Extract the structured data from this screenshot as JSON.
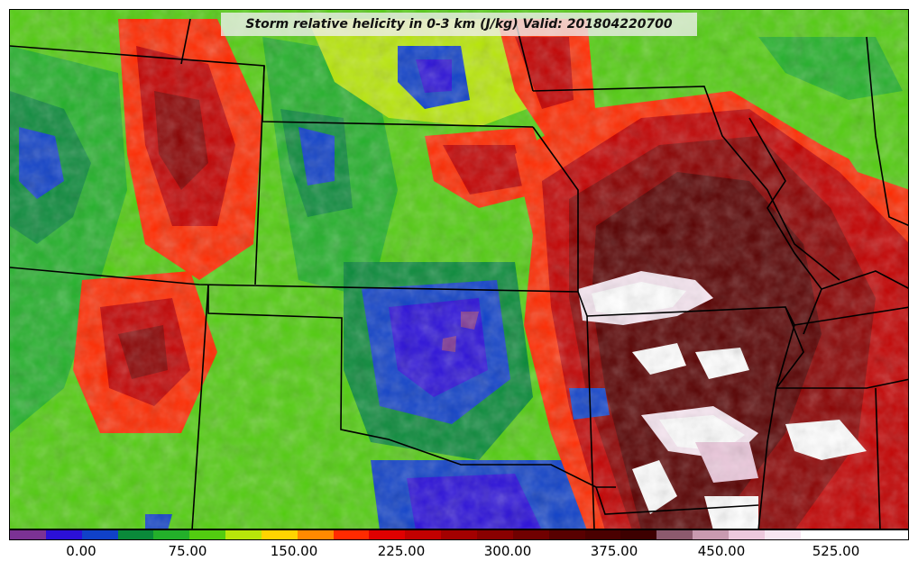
{
  "title": "Storm relative helicity in 0-3 km (J/kg) Valid: 201804220700",
  "colorbar": {
    "colors": [
      "#7b3294",
      "#2b10d8",
      "#1041c8",
      "#0a8a3a",
      "#23b02a",
      "#52cc10",
      "#b8e60a",
      "#ffd400",
      "#ff8a00",
      "#ff2a00",
      "#e00000",
      "#c20000",
      "#a30000",
      "#8a0000",
      "#700000",
      "#580000",
      "#4a0000",
      "#3d0000",
      "#8c5a6e",
      "#c99ab0",
      "#ecc8dc",
      "#f7e6f1",
      "#ffffff",
      "#ffffff",
      "#ffffff"
    ],
    "tick_labels": [
      "0.00",
      "75.00",
      "150.00",
      "225.00",
      "300.00",
      "375.00",
      "450.00",
      "525.00"
    ]
  },
  "colors": {
    "state_border": "#000000",
    "title_box": "#f0f0f0"
  }
}
